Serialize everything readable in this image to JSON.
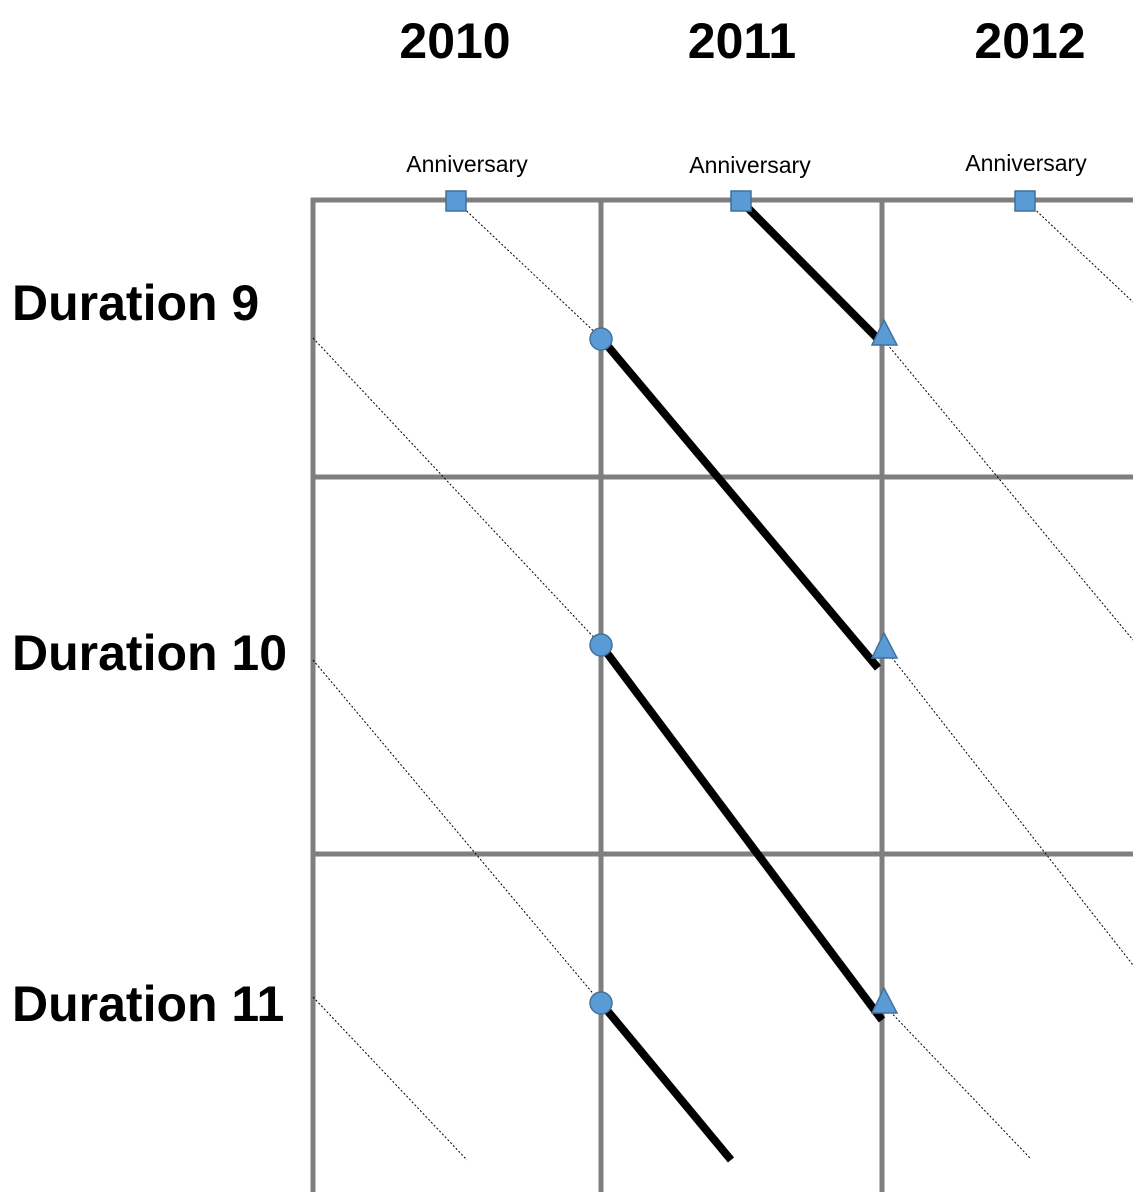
{
  "years": [
    "2010",
    "2011",
    "2012"
  ],
  "anniversary_label": "Anniversary",
  "durations": [
    "Duration 9",
    "Duration 10",
    "Duration 11"
  ],
  "colors": {
    "grid": "#7f7f7f",
    "marker_fill": "#5b9bd5",
    "marker_stroke": "#41719c",
    "lifeline": "#000000",
    "guide": "#000000"
  }
}
